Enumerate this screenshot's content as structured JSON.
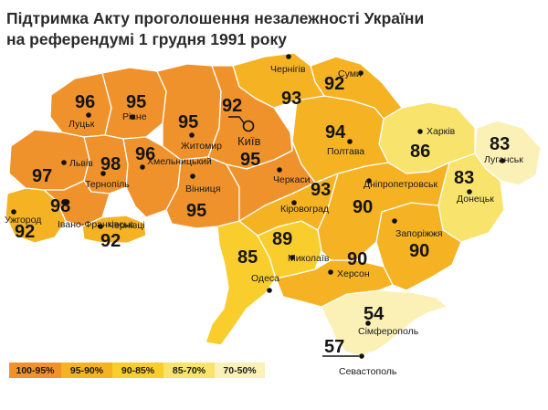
{
  "title": {
    "line1": "Підтримка Акту проголошення незалежності України",
    "line2": "на референдумі 1 грудня 1991 року"
  },
  "colors": {
    "r100_95": "#f0922b",
    "r95_90": "#f5b223",
    "r90_85": "#f9cd2c",
    "r85_70": "#f8e36c",
    "r70_50": "#fbf1b6"
  },
  "regions": [
    {
      "id": "volyn",
      "city": "Луцьк",
      "value": "96",
      "range": "100-95%"
    },
    {
      "id": "rivne",
      "city": "Рівне",
      "value": "95",
      "range": "100-95%"
    },
    {
      "id": "zhytomyr",
      "city": "Житомир",
      "value": "95",
      "range": "100-95%"
    },
    {
      "id": "kyiv-oblast",
      "city": "",
      "value": "95",
      "range": "100-95%"
    },
    {
      "id": "kyiv-city",
      "city": "Київ",
      "value": "92",
      "range": "95-90%"
    },
    {
      "id": "chernihiv",
      "city": "Чернігів",
      "value": "93",
      "range": "95-90%"
    },
    {
      "id": "sumy",
      "city": "Суми",
      "value": "92",
      "range": "95-90%"
    },
    {
      "id": "lviv",
      "city": "Львів",
      "value": "97",
      "range": "100-95%"
    },
    {
      "id": "ternopil",
      "city": "Тернопіль",
      "value": "98",
      "range": "100-95%"
    },
    {
      "id": "khmelnytskyi",
      "city": "Хмельницький",
      "value": "96",
      "range": "100-95%"
    },
    {
      "id": "vinnytsia",
      "city": "Вінниця",
      "value": "95",
      "range": "100-95%"
    },
    {
      "id": "cherkasy",
      "city": "Черкаси",
      "value": "",
      "range": "100-95%"
    },
    {
      "id": "poltava",
      "city": "Полтава",
      "value": "94",
      "range": "95-90%"
    },
    {
      "id": "kharkiv",
      "city": "Харків",
      "value": "86",
      "range": "90-85%"
    },
    {
      "id": "luhansk",
      "city": "Луганськ",
      "value": "83",
      "range": "85-70%"
    },
    {
      "id": "donetsk",
      "city": "Донецьк",
      "value": "83",
      "range": "85-70%"
    },
    {
      "id": "zakarpattia",
      "city": "Ужгород",
      "value": "92",
      "range": "95-90%"
    },
    {
      "id": "ivano-frankivsk",
      "city": "Івано-Франківськ",
      "value": "98",
      "range": "100-95%"
    },
    {
      "id": "chernivtsi",
      "city": "Чернівці",
      "value": "92",
      "range": "95-90%"
    },
    {
      "id": "kirovohrad",
      "city": "Кіровоград",
      "value": "93",
      "range": "95-90%"
    },
    {
      "id": "dnipropetrovsk",
      "city": "Дніпропетровськ",
      "value": "90",
      "range": "95-90%"
    },
    {
      "id": "zaporizhzhia",
      "city": "Запоріжжя",
      "value": "90",
      "range": "95-90%"
    },
    {
      "id": "odesa",
      "city": "Одеса",
      "value": "85",
      "range": "90-85%"
    },
    {
      "id": "mykolaiv",
      "city": "Миколаїв",
      "value": "89",
      "range": "90-85%"
    },
    {
      "id": "kherson",
      "city": "Херсон",
      "value": "90",
      "range": "95-90%"
    },
    {
      "id": "crimea",
      "city": "Сімферополь",
      "value": "54",
      "range": "70-50%"
    },
    {
      "id": "sevastopol",
      "city": "Севастополь",
      "value": "57",
      "range": "70-50%"
    }
  ],
  "legend": [
    {
      "label": "100-95%",
      "color": "#f0922b"
    },
    {
      "label": "95-90%",
      "color": "#f5b223"
    },
    {
      "label": "90-85%",
      "color": "#f9cd2c"
    },
    {
      "label": "85-70%",
      "color": "#f8e36c"
    },
    {
      "label": "70-50%",
      "color": "#fbf1b6"
    }
  ]
}
